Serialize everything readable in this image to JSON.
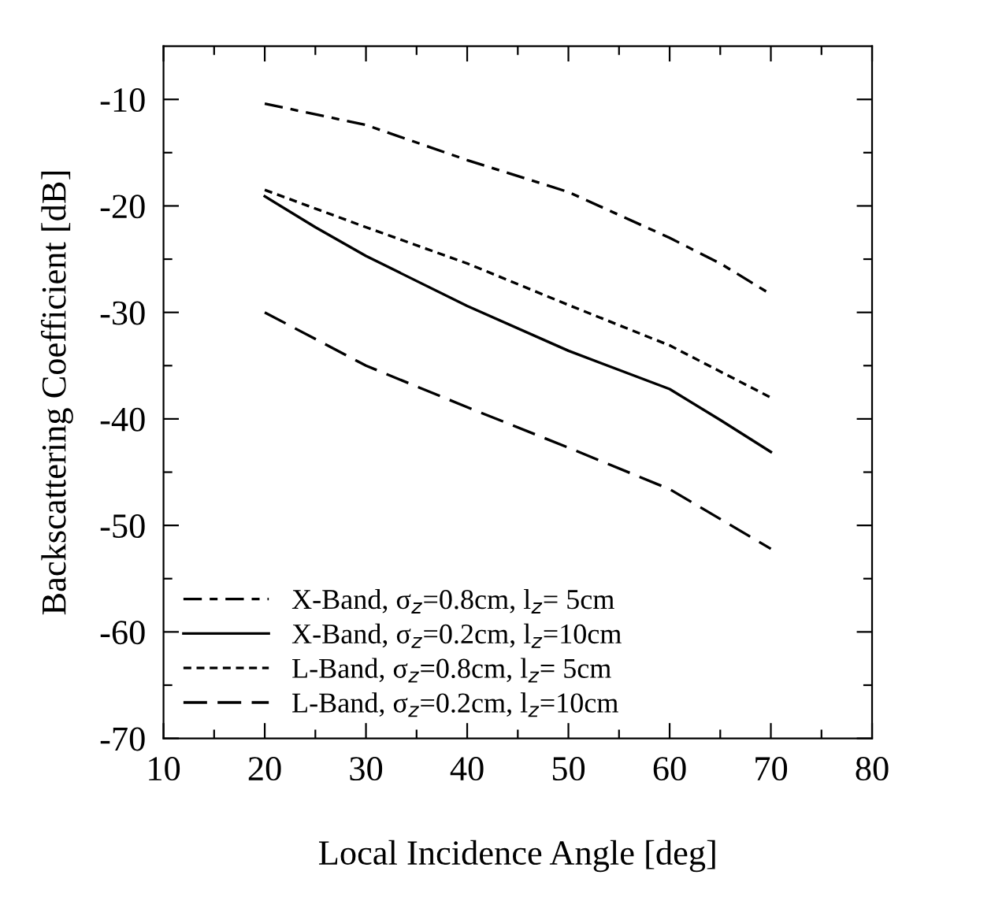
{
  "chart_data": {
    "type": "line",
    "xlabel": "Local Incidence Angle [deg]",
    "ylabel": "Backscattering Coefficient [dB]",
    "x": [
      20,
      25,
      30,
      40,
      50,
      60,
      65,
      70
    ],
    "series": [
      {
        "name": "X-Band, σ$_{z}$=0.8cm, l$_{z}$= 5cm",
        "color": "#000000",
        "line_style": "dashdot",
        "values": [
          -10.4,
          null,
          -12.4,
          -15.7,
          -18.7,
          -23.0,
          -25.4,
          -28.3
        ]
      },
      {
        "name": "X-Band, σ$_{z}$=0.2cm, l$_{z}$=10cm",
        "color": "#000000",
        "line_style": "solid",
        "values": [
          -19.1,
          -22.0,
          -24.7,
          -29.4,
          -33.6,
          -37.2,
          -40.1,
          -43.1
        ]
      },
      {
        "name": "L-Band, σ$_{z}$=0.8cm, l$_{z}$= 5cm",
        "color": "#000000",
        "line_style": "dashed",
        "values": [
          -18.5,
          null,
          -22.0,
          -25.4,
          -29.3,
          -33.1,
          null,
          -38.0
        ]
      },
      {
        "name": "L-Band, σ$_{z}$=0.2cm, l$_{z}$=10cm",
        "color": "#000000",
        "line_style": "longdash",
        "values": [
          -30.0,
          null,
          -35.0,
          -38.9,
          -42.7,
          -46.6,
          null,
          -52.2
        ]
      }
    ],
    "xlim": [
      10,
      80
    ],
    "ylim": [
      -70,
      -5
    ],
    "xticks": [
      10,
      {
        "value": 15,
        "label": null
      },
      20,
      {
        "value": 25,
        "label": null
      },
      30,
      {
        "value": 35,
        "label": null
      },
      40,
      {
        "value": 45,
        "label": null
      },
      50,
      {
        "value": 55,
        "label": null
      },
      60,
      {
        "value": 65,
        "label": null
      },
      70,
      {
        "value": 75,
        "label": null
      },
      80
    ],
    "yticks": [
      -70,
      {
        "value": -65,
        "label": null
      },
      -60,
      {
        "value": -55,
        "label": null
      },
      -50,
      {
        "value": -45,
        "label": null
      },
      -40,
      {
        "value": -35,
        "label": null
      },
      -30,
      {
        "value": -25,
        "label": null
      },
      -20,
      {
        "value": -15,
        "label": null
      },
      -10
    ],
    "legend": "bottom left",
    "grid": false,
    "marker": "none"
  }
}
